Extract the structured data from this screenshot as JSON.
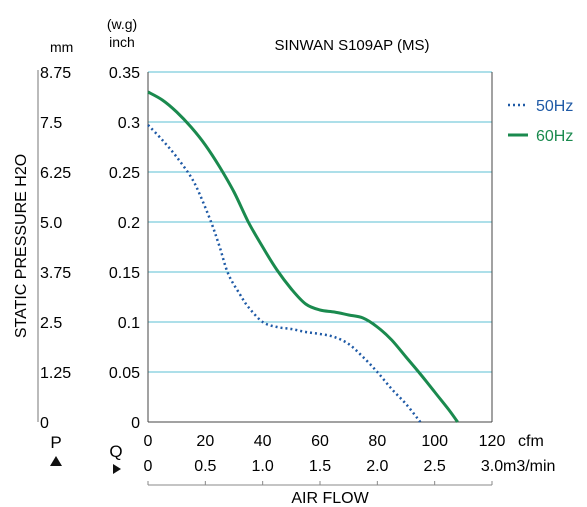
{
  "chart_data": {
    "type": "line",
    "title": "SINWAN S109AP (MS)",
    "xlabel": "AIR FLOW",
    "ylabel": "STATIC PRESSURE H2O",
    "y_unit_mm": "mm",
    "y_unit_inch_top": "(w.g)",
    "y_unit_inch": "inch",
    "x_unit_cfm": "cfm",
    "x_unit_m3": "m3/min",
    "p_label": "P",
    "q_label": "Q",
    "xlim": [
      0,
      120
    ],
    "ylim": [
      0,
      0.35
    ],
    "x_ticks_cfm": [
      "0",
      "20",
      "40",
      "60",
      "80",
      "100",
      "120"
    ],
    "x_ticks_m3": [
      "0",
      "0.5",
      "1.0",
      "1.5",
      "2.0",
      "2.5",
      "3.0"
    ],
    "y_ticks_inch": [
      "0",
      "0.05",
      "0.1",
      "0.15",
      "0.2",
      "0.25",
      "0.3",
      "0.35"
    ],
    "y_ticks_mm": [
      "0",
      "1.25",
      "2.5",
      "3.75",
      "5.0",
      "6.25",
      "7.5",
      "8.75"
    ],
    "grid": true,
    "legend_position": "right",
    "series": [
      {
        "name": "50Hz",
        "style": "dotted",
        "color": "#1f5aa6",
        "x": [
          0,
          5,
          10,
          15,
          18,
          22,
          25,
          28,
          32,
          35,
          40,
          45,
          50,
          55,
          60,
          65,
          70,
          75,
          80,
          85,
          90,
          95
        ],
        "y": [
          0.297,
          0.282,
          0.265,
          0.245,
          0.228,
          0.2,
          0.175,
          0.148,
          0.128,
          0.115,
          0.1,
          0.095,
          0.093,
          0.09,
          0.088,
          0.085,
          0.078,
          0.065,
          0.05,
          0.033,
          0.018,
          0
        ]
      },
      {
        "name": "60Hz",
        "style": "solid",
        "color": "#1a8a4e",
        "x": [
          0,
          5,
          10,
          15,
          20,
          25,
          30,
          35,
          40,
          45,
          50,
          55,
          60,
          65,
          70,
          75,
          80,
          85,
          90,
          95,
          100,
          105,
          108
        ],
        "y": [
          0.33,
          0.322,
          0.31,
          0.295,
          0.277,
          0.255,
          0.23,
          0.2,
          0.175,
          0.152,
          0.133,
          0.118,
          0.112,
          0.11,
          0.107,
          0.104,
          0.095,
          0.082,
          0.065,
          0.048,
          0.03,
          0.012,
          0
        ]
      }
    ]
  }
}
